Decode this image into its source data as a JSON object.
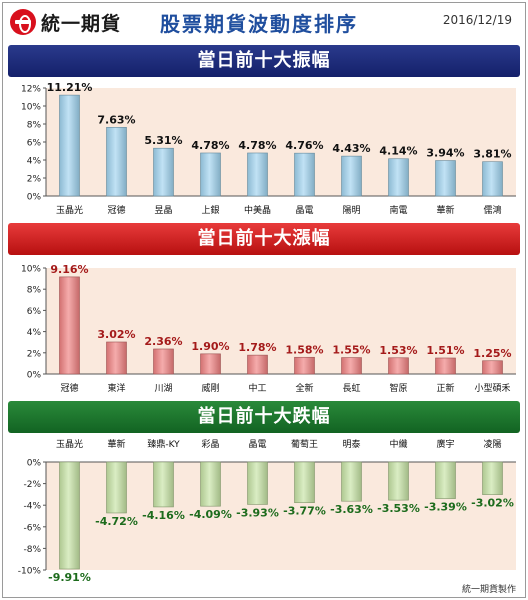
{
  "header": {
    "brand": "統一期貨",
    "title": "股票期貨波動度排序",
    "date": "2016/12/19"
  },
  "footer": {
    "credit": "統一期貨製作"
  },
  "colors": {
    "plot_bg": "#fae9dd",
    "section1_bar": "#9fd3ef",
    "section2_bar": "#f08080",
    "section3_bar": "#c6e3a4",
    "section2_label": "#a41a1a",
    "section3_label": "#1c6b1c"
  },
  "chart_data": [
    {
      "type": "bar",
      "title": "當日前十大振幅",
      "categories": [
        "玉晶光",
        "冠德",
        "昱晶",
        "上銀",
        "中美晶",
        "晶電",
        "陽明",
        "南電",
        "華新",
        "儒鴻"
      ],
      "values": [
        11.21,
        7.63,
        5.31,
        4.78,
        4.78,
        4.76,
        4.43,
        4.14,
        3.94,
        3.81
      ],
      "data_labels": [
        "11.21%",
        "7.63%",
        "5.31%",
        "4.78%",
        "4.78%",
        "4.76%",
        "4.43%",
        "4.14%",
        "3.94%",
        "3.81%"
      ],
      "yticks": [
        "0%",
        "2%",
        "4%",
        "6%",
        "8%",
        "10%",
        "12%"
      ],
      "ylim": [
        0,
        12
      ]
    },
    {
      "type": "bar",
      "title": "當日前十大漲幅",
      "categories": [
        "冠德",
        "東洋",
        "川湖",
        "威剛",
        "中工",
        "全新",
        "長虹",
        "智原",
        "正新",
        "小型碩禾"
      ],
      "values": [
        9.16,
        3.02,
        2.36,
        1.9,
        1.78,
        1.58,
        1.55,
        1.53,
        1.51,
        1.25
      ],
      "data_labels": [
        "9.16%",
        "3.02%",
        "2.36%",
        "1.90%",
        "1.78%",
        "1.58%",
        "1.55%",
        "1.53%",
        "1.51%",
        "1.25%"
      ],
      "yticks": [
        "0%",
        "2%",
        "4%",
        "6%",
        "8%",
        "10%"
      ],
      "ylim": [
        0,
        10
      ]
    },
    {
      "type": "bar",
      "title": "當日前十大跌幅",
      "categories": [
        "玉晶光",
        "華新",
        "臻鼎-KY",
        "彩晶",
        "晶電",
        "葡萄王",
        "明泰",
        "中纖",
        "廣宇",
        "凌陽"
      ],
      "values": [
        -9.91,
        -4.72,
        -4.16,
        -4.09,
        -3.93,
        -3.77,
        -3.63,
        -3.53,
        -3.39,
        -3.02
      ],
      "data_labels": [
        "-9.91%",
        "-4.72%",
        "-4.16%",
        "-4.09%",
        "-3.93%",
        "-3.77%",
        "-3.63%",
        "-3.53%",
        "-3.39%",
        "-3.02%"
      ],
      "yticks": [
        "0%",
        "-2%",
        "-4%",
        "-6%",
        "-8%",
        "-10%"
      ],
      "ylim": [
        -10,
        0
      ]
    }
  ]
}
